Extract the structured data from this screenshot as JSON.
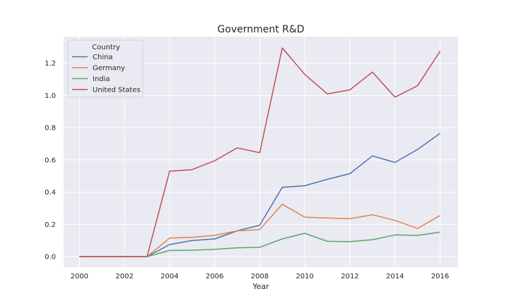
{
  "chart_data": {
    "type": "line",
    "title": "Government R&D",
    "xlabel": "Year",
    "ylabel": "",
    "xlim": [
      1999.3,
      2016.8
    ],
    "ylim": [
      -0.065,
      1.365
    ],
    "x_ticks": [
      2000,
      2002,
      2004,
      2006,
      2008,
      2010,
      2012,
      2014,
      2016
    ],
    "y_ticks": [
      0.0,
      0.2,
      0.4,
      0.6,
      0.8,
      1.0,
      1.2
    ],
    "y_tick_labels": [
      "0.0",
      "0.2",
      "0.4",
      "0.6",
      "0.8",
      "1.0",
      "1.2"
    ],
    "grid": true,
    "legend": {
      "title": "Country",
      "position": "top-left"
    },
    "x": [
      2000,
      2001,
      2002,
      2003,
      2004,
      2005,
      2006,
      2007,
      2008,
      2009,
      2010,
      2011,
      2012,
      2013,
      2014,
      2015,
      2016
    ],
    "series": [
      {
        "name": "China",
        "color": "#4c72b0",
        "values": [
          0,
          0,
          0,
          0,
          0.075,
          0.1,
          0.11,
          0.16,
          0.195,
          0.43,
          0.44,
          0.48,
          0.515,
          0.625,
          0.585,
          0.665,
          0.765
        ]
      },
      {
        "name": "Germany",
        "color": "#dd8452",
        "values": [
          0,
          0,
          0,
          0,
          0.115,
          0.12,
          0.132,
          0.16,
          0.168,
          0.325,
          0.245,
          0.24,
          0.235,
          0.26,
          0.225,
          0.175,
          0.255
        ]
      },
      {
        "name": "India",
        "color": "#55a868",
        "values": [
          0,
          0,
          0,
          0,
          0.038,
          0.04,
          0.045,
          0.055,
          0.058,
          0.11,
          0.145,
          0.095,
          0.093,
          0.105,
          0.135,
          0.132,
          0.152
        ]
      },
      {
        "name": "United States",
        "color": "#c44e52",
        "values": [
          0,
          0,
          0,
          0,
          0.53,
          0.54,
          0.595,
          0.675,
          0.645,
          1.295,
          1.13,
          1.01,
          1.035,
          1.145,
          0.99,
          1.06,
          1.275
        ]
      }
    ]
  },
  "colors": {
    "plot_background": "#eaeaf2",
    "grid": "#ffffff"
  }
}
